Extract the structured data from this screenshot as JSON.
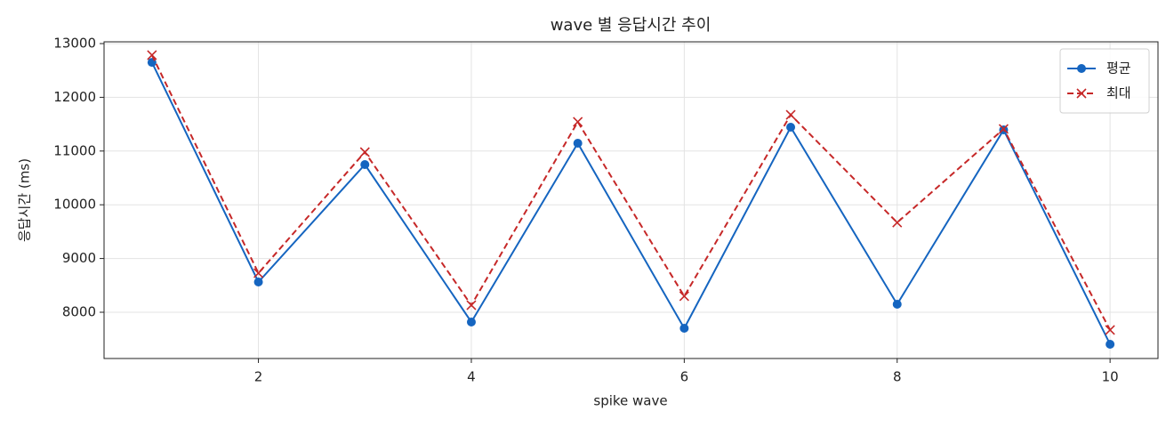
{
  "chart_data": {
    "type": "line",
    "title": "wave 별 응답시간 추이",
    "xlabel": "spike wave",
    "ylabel": "응답시간 (ms)",
    "x": [
      1,
      2,
      3,
      4,
      5,
      6,
      7,
      8,
      9,
      10
    ],
    "series": [
      {
        "name": "평균",
        "color": "#1565c0",
        "marker": "circle",
        "linestyle": "solid",
        "values": [
          12650,
          8563,
          10748,
          7818,
          11146,
          7702,
          11444,
          8149,
          11394,
          7404
        ]
      },
      {
        "name": "최대",
        "color": "#c62828",
        "marker": "x",
        "linestyle": "dashed",
        "values": [
          12785,
          8728,
          10980,
          8132,
          11543,
          8298,
          11675,
          9669,
          11411,
          7669
        ]
      }
    ],
    "xlim": [
      0.55,
      10.45
    ],
    "ylim": [
      7139,
      13033
    ],
    "xticks": [
      2,
      4,
      6,
      8,
      10
    ],
    "yticks": [
      8000,
      9000,
      10000,
      11000,
      12000,
      13000
    ],
    "grid": true,
    "legend": "upper right"
  }
}
